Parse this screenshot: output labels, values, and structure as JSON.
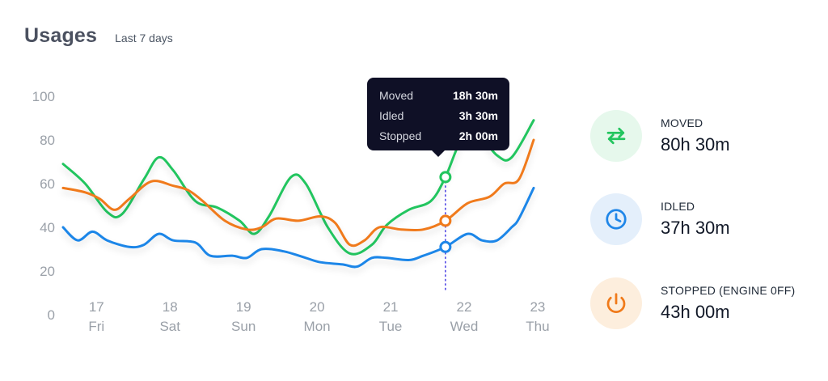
{
  "header": {
    "title": "Usages",
    "subtitle": "Last 7 days"
  },
  "tooltip": {
    "rows": [
      {
        "label": "Moved",
        "value": "18h 30m"
      },
      {
        "label": "Idled",
        "value": "3h 30m"
      },
      {
        "label": "Stopped",
        "value": "2h 00m"
      }
    ]
  },
  "stats": {
    "moved": {
      "label": "MOVED",
      "value": "80h 30m",
      "icon": "arrows-swap-icon",
      "color": "#22c55e",
      "bg": "#e6f8ec"
    },
    "idled": {
      "label": "IDLED",
      "value": "37h 30m",
      "icon": "clock-icon",
      "color": "#1f86e8",
      "bg": "#e4effb"
    },
    "stopped": {
      "label": "STOPPED (ENGINE 0FF)",
      "value": "43h 00m",
      "icon": "power-icon",
      "color": "#f07a1a",
      "bg": "#fdeedd"
    }
  },
  "chart_data": {
    "type": "line",
    "ylim": [
      0,
      100
    ],
    "yticks": [
      0,
      20,
      40,
      60,
      80,
      100
    ],
    "xlim": [
      16.7,
      23.1
    ],
    "categories": [
      {
        "day": "17",
        "weekday": "Fri",
        "x": 17
      },
      {
        "day": "18",
        "weekday": "Sat",
        "x": 18
      },
      {
        "day": "19",
        "weekday": "Sun",
        "x": 19
      },
      {
        "day": "20",
        "weekday": "Mon",
        "x": 20
      },
      {
        "day": "21",
        "weekday": "Tue",
        "x": 21
      },
      {
        "day": "22",
        "weekday": "Wed",
        "x": 22
      },
      {
        "day": "23",
        "weekday": "Thu",
        "x": 23
      }
    ],
    "highlight_x": 21.9,
    "grid": false,
    "series": [
      {
        "color": "#22c55e",
        "points": [
          [
            16.7,
            69
          ],
          [
            17.0,
            60
          ],
          [
            17.3,
            47
          ],
          [
            17.5,
            46
          ],
          [
            17.8,
            62
          ],
          [
            18.0,
            72
          ],
          [
            18.2,
            66
          ],
          [
            18.5,
            52
          ],
          [
            18.8,
            49
          ],
          [
            19.1,
            43
          ],
          [
            19.3,
            37
          ],
          [
            19.5,
            45
          ],
          [
            19.8,
            63
          ],
          [
            20.0,
            60
          ],
          [
            20.3,
            40
          ],
          [
            20.6,
            28
          ],
          [
            20.9,
            32
          ],
          [
            21.1,
            41
          ],
          [
            21.4,
            48
          ],
          [
            21.7,
            52
          ],
          [
            21.9,
            63
          ],
          [
            22.1,
            79
          ],
          [
            22.3,
            84
          ],
          [
            22.6,
            73
          ],
          [
            22.8,
            72
          ],
          [
            23.1,
            89
          ]
        ]
      },
      {
        "color": "#f07a1a",
        "points": [
          [
            16.7,
            58
          ],
          [
            17.0,
            56
          ],
          [
            17.2,
            53
          ],
          [
            17.4,
            48
          ],
          [
            17.6,
            53
          ],
          [
            17.9,
            61
          ],
          [
            18.2,
            59
          ],
          [
            18.4,
            57
          ],
          [
            18.6,
            52
          ],
          [
            18.9,
            43
          ],
          [
            19.2,
            39
          ],
          [
            19.4,
            40
          ],
          [
            19.6,
            44
          ],
          [
            19.9,
            43
          ],
          [
            20.2,
            45
          ],
          [
            20.4,
            42
          ],
          [
            20.6,
            32
          ],
          [
            20.8,
            34
          ],
          [
            21.0,
            40
          ],
          [
            21.3,
            39
          ],
          [
            21.6,
            39
          ],
          [
            21.9,
            43
          ],
          [
            22.2,
            51
          ],
          [
            22.5,
            54
          ],
          [
            22.7,
            60
          ],
          [
            22.9,
            62
          ],
          [
            23.1,
            80
          ]
        ]
      },
      {
        "color": "#1f86e8",
        "points": [
          [
            16.7,
            40
          ],
          [
            16.9,
            34
          ],
          [
            17.1,
            38
          ],
          [
            17.3,
            34
          ],
          [
            17.6,
            31
          ],
          [
            17.8,
            32
          ],
          [
            18.0,
            37
          ],
          [
            18.2,
            34
          ],
          [
            18.5,
            33
          ],
          [
            18.7,
            27
          ],
          [
            19.0,
            27
          ],
          [
            19.2,
            26
          ],
          [
            19.4,
            30
          ],
          [
            19.7,
            29
          ],
          [
            20.0,
            26
          ],
          [
            20.2,
            24
          ],
          [
            20.5,
            23
          ],
          [
            20.7,
            22
          ],
          [
            20.9,
            26
          ],
          [
            21.1,
            26
          ],
          [
            21.4,
            25
          ],
          [
            21.6,
            27
          ],
          [
            21.9,
            31
          ],
          [
            22.2,
            37
          ],
          [
            22.4,
            34
          ],
          [
            22.6,
            34
          ],
          [
            22.8,
            40
          ],
          [
            22.9,
            44
          ],
          [
            23.1,
            58
          ]
        ]
      }
    ],
    "markers": [
      {
        "x": 21.9,
        "y": 63,
        "color": "#22c55e"
      },
      {
        "x": 21.9,
        "y": 43,
        "color": "#f07a1a"
      },
      {
        "x": 21.9,
        "y": 31,
        "color": "#1f86e8"
      }
    ]
  }
}
